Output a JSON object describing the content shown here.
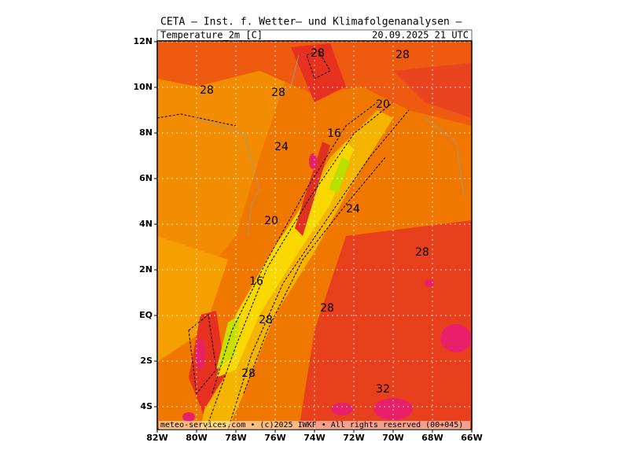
{
  "header": {
    "title": "CETA — Inst. f. Wetter— und Klimafolgenanalysen —",
    "field": "Temperature_2m [C]",
    "datetime": "20.09.2025 21 UTC"
  },
  "map": {
    "lat_labels": [
      "12N",
      "10N",
      "8N",
      "6N",
      "4N",
      "2N",
      "EQ",
      "2S",
      "4S"
    ],
    "lon_labels": [
      "82W",
      "80W",
      "78W",
      "76W",
      "74W",
      "72W",
      "70W",
      "68W",
      "66W"
    ],
    "contour_labels": [
      "28",
      "28",
      "28",
      "28",
      "20",
      "16",
      "24",
      "24",
      "20",
      "28",
      "16",
      "28",
      "28",
      "28",
      "32"
    ]
  },
  "footer": "meteo-services.com • (c)2025 IWKF • All rights reserved (00+045)"
}
